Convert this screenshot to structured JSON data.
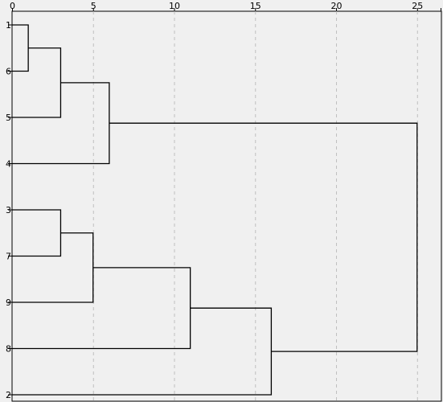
{
  "chart_data": {
    "type": "dendrogram",
    "title": "",
    "xlabel": "",
    "ylabel": "",
    "x_ticks": [
      0,
      5,
      10,
      15,
      20,
      25
    ],
    "x_tick_labels": [
      "0",
      "5",
      "10",
      "15",
      "20",
      "25"
    ],
    "xlim": [
      0,
      26.5
    ],
    "grid": "vertical-dashed",
    "leaf_order": [
      "1",
      "6",
      "5",
      "4",
      "3",
      "7",
      "9",
      "8",
      "2"
    ],
    "merges": [
      {
        "id": "m1",
        "left": "1",
        "right": "6",
        "height": 1
      },
      {
        "id": "m2",
        "left": "m1",
        "right": "5",
        "height": 3
      },
      {
        "id": "m3",
        "left": "m2",
        "right": "4",
        "height": 6
      },
      {
        "id": "m4",
        "left": "3",
        "right": "7",
        "height": 3
      },
      {
        "id": "m5",
        "left": "m4",
        "right": "9",
        "height": 5
      },
      {
        "id": "m6",
        "left": "m5",
        "right": "8",
        "height": 11
      },
      {
        "id": "m7",
        "left": "m6",
        "right": "2",
        "height": 16
      },
      {
        "id": "m8",
        "left": "m3",
        "right": "m7",
        "height": 25
      }
    ]
  },
  "colors": {
    "background": "#f0f0f0",
    "line": "#000000",
    "grid": "#bfbfbf"
  }
}
